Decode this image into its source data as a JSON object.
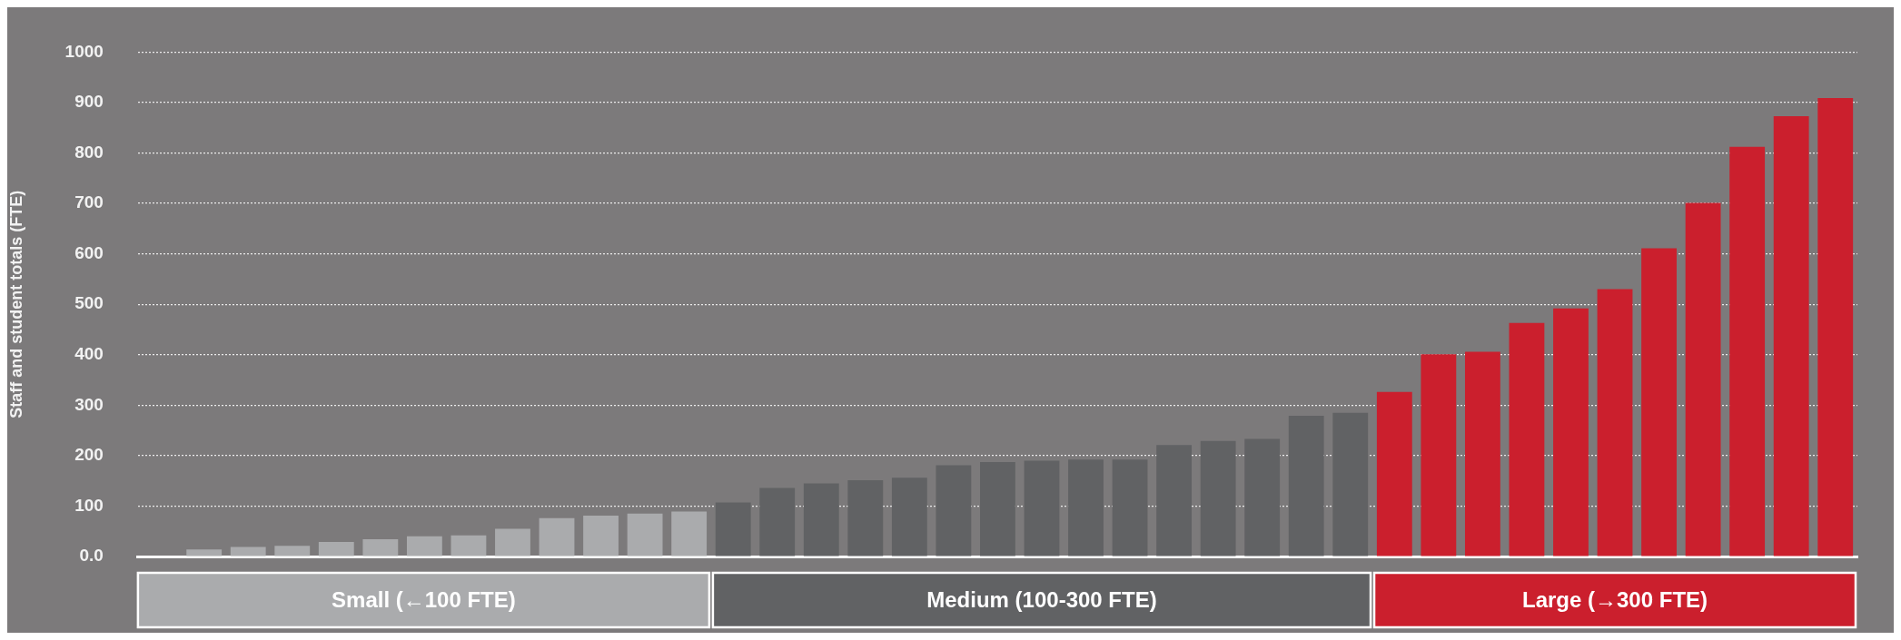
{
  "chart_data": {
    "type": "bar",
    "ylabel": "Staff and student totals (FTE)",
    "categories": [
      null,
      null,
      null,
      null,
      null,
      null,
      null,
      null,
      null,
      null,
      null,
      null,
      null,
      null,
      null,
      null,
      null,
      null,
      null,
      null,
      null,
      null,
      null,
      null,
      null,
      null,
      null,
      null,
      null,
      null,
      null,
      null,
      null,
      null,
      null,
      null,
      null,
      null,
      null
    ],
    "series": [
      {
        "name": "Small (←100 FTE)",
        "color": "#aaabad",
        "values": [
          null,
          14,
          19,
          21,
          29,
          34,
          40,
          42,
          55,
          76,
          81,
          85,
          89,
          null,
          null,
          null,
          null,
          null,
          null,
          null,
          null,
          null,
          null,
          null,
          null,
          null,
          null,
          null,
          null,
          null,
          null,
          null,
          null,
          null,
          null,
          null,
          null,
          null,
          null
        ]
      },
      {
        "name": "Medium (100-300 FTE)",
        "color": "#616264",
        "values": [
          null,
          null,
          null,
          null,
          null,
          null,
          null,
          null,
          null,
          null,
          null,
          null,
          null,
          107,
          136,
          145,
          151,
          156,
          181,
          187,
          190,
          192,
          192,
          221,
          229,
          233,
          279,
          285,
          null,
          null,
          null,
          null,
          null,
          null,
          null,
          null,
          null,
          null,
          null
        ]
      },
      {
        "name": "Large (→300 FTE)",
        "color": "#cb1f2d",
        "values": [
          null,
          null,
          null,
          null,
          null,
          null,
          null,
          null,
          null,
          null,
          null,
          null,
          null,
          null,
          null,
          null,
          null,
          null,
          null,
          null,
          null,
          null,
          null,
          null,
          null,
          null,
          null,
          null,
          326,
          401,
          406,
          463,
          492,
          530,
          611,
          701,
          812,
          873,
          909
        ]
      }
    ],
    "ylim": [
      0,
      1000
    ],
    "yticks": [
      {
        "value": 0,
        "label": "0.0"
      },
      100,
      200,
      300,
      400,
      500,
      600,
      700,
      800,
      900,
      1000
    ],
    "grid": "y",
    "legend": "bottom"
  }
}
